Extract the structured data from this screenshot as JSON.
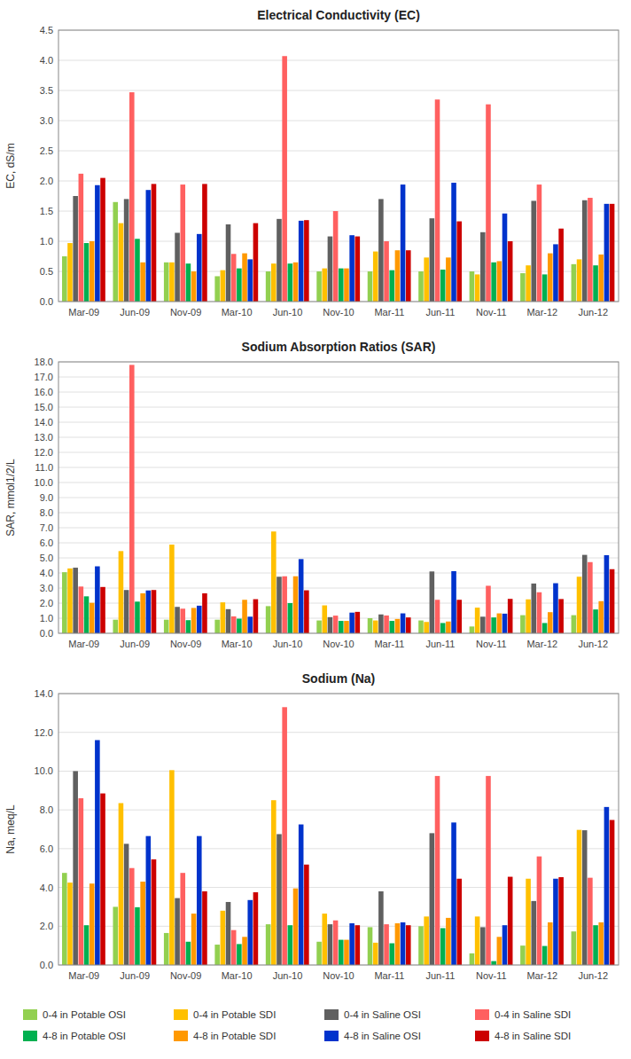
{
  "chart_data": [
    {
      "type": "bar",
      "title": "Electrical Conductivity (EC)",
      "y_label": "EC, dS/m",
      "categories": [
        "Mar-09",
        "Jun-09",
        "Nov-09",
        "Mar-10",
        "Jun-10",
        "Nov-10",
        "Mar-11",
        "Jun-11",
        "Nov-11",
        "Mar-12",
        "Jun-12"
      ],
      "series": [
        {
          "name": "0-4 in Potable OSI",
          "color": "#92D050",
          "values": [
            0.75,
            1.65,
            0.65,
            0.42,
            0.5,
            0.5,
            0.5,
            0.5,
            0.5,
            0.47,
            0.62
          ]
        },
        {
          "name": "0-4 in Potable SDI",
          "color": "#FFC000",
          "values": [
            0.97,
            1.3,
            0.65,
            0.52,
            0.63,
            0.55,
            0.83,
            0.73,
            0.45,
            0.6,
            0.7
          ]
        },
        {
          "name": "0-4 in Saline OSI",
          "color": "#606060",
          "values": [
            1.75,
            1.7,
            1.14,
            1.28,
            1.37,
            1.08,
            1.7,
            1.38,
            1.15,
            1.67,
            1.68
          ]
        },
        {
          "name": "0-4 in Saline SDI",
          "color": "#FF6060",
          "values": [
            2.12,
            3.47,
            1.94,
            0.79,
            4.07,
            1.5,
            1.0,
            3.35,
            3.27,
            1.94,
            1.72
          ]
        },
        {
          "name": "4-8 in Potable OSI",
          "color": "#00B050",
          "values": [
            0.97,
            1.04,
            0.63,
            0.55,
            0.63,
            0.55,
            0.52,
            0.53,
            0.65,
            0.45,
            0.6
          ]
        },
        {
          "name": "4-8 in Potable SDI",
          "color": "#FF9900",
          "values": [
            1.0,
            0.65,
            0.5,
            0.8,
            0.65,
            0.55,
            0.85,
            0.73,
            0.67,
            0.8,
            0.78
          ]
        },
        {
          "name": "4-8 in Saline OSI",
          "color": "#0033CC",
          "values": [
            1.93,
            1.85,
            1.12,
            0.7,
            1.34,
            1.1,
            1.94,
            1.97,
            1.46,
            0.95,
            1.62
          ]
        },
        {
          "name": "4-8 in Saline SDI",
          "color": "#CC0000",
          "values": [
            2.05,
            1.95,
            1.95,
            1.3,
            1.35,
            1.08,
            0.85,
            1.33,
            1.0,
            1.21,
            1.62
          ]
        }
      ],
      "ylim": [
        0,
        4.5
      ],
      "yticks": [
        {
          "value": 0,
          "label": "0.0"
        },
        0.5,
        {
          "value": 1,
          "label": "1.0"
        },
        1.5,
        {
          "value": 2,
          "label": "2.0"
        },
        2.5,
        {
          "value": 3,
          "label": "3.0"
        },
        3.5,
        {
          "value": 4,
          "label": "4.0"
        },
        4.5
      ],
      "grid": true
    },
    {
      "type": "bar",
      "title": "Sodium Absorption Ratios (SAR)",
      "y_label": "SAR, mmol1/2/L",
      "categories": [
        "Mar-09",
        "Jun-09",
        "Nov-09",
        "Mar-10",
        "Jun-10",
        "Nov-10",
        "Mar-11",
        "Jun-11",
        "Nov-11",
        "Mar-12",
        "Jun-12"
      ],
      "series": [
        {
          "name": "0-4 in Potable OSI",
          "color": "#92D050",
          "values": [
            4.05,
            0.9,
            0.9,
            0.9,
            1.8,
            0.85,
            1.0,
            0.85,
            0.45,
            1.2,
            1.2
          ]
        },
        {
          "name": "0-4 in Potable SDI",
          "color": "#FFC000",
          "values": [
            4.3,
            5.45,
            5.88,
            2.05,
            6.75,
            1.85,
            0.85,
            0.75,
            1.7,
            2.25,
            3.75
          ]
        },
        {
          "name": "0-4 in Saline OSI",
          "color": "#606060",
          "values": [
            4.35,
            2.87,
            1.75,
            1.6,
            3.75,
            1.07,
            1.25,
            4.1,
            1.1,
            3.3,
            5.2
          ]
        },
        {
          "name": "0-4 in Saline SDI",
          "color": "#FF6060",
          "values": [
            3.1,
            17.8,
            1.63,
            1.12,
            3.78,
            1.17,
            1.18,
            2.22,
            3.15,
            2.72,
            4.72
          ]
        },
        {
          "name": "4-8 in Potable OSI",
          "color": "#00B050",
          "values": [
            2.45,
            2.1,
            0.87,
            0.97,
            2.0,
            0.82,
            0.82,
            0.68,
            1.05,
            0.68,
            1.58
          ]
        },
        {
          "name": "4-8 in Potable SDI",
          "color": "#FF9900",
          "values": [
            2.02,
            2.65,
            1.68,
            2.22,
            3.78,
            0.82,
            0.95,
            0.78,
            1.32,
            1.4,
            2.13
          ]
        },
        {
          "name": "4-8 in Saline OSI",
          "color": "#0033CC",
          "values": [
            4.44,
            2.84,
            1.83,
            1.1,
            4.92,
            1.37,
            1.32,
            4.12,
            1.3,
            3.32,
            5.18
          ]
        },
        {
          "name": "4-8 in Saline SDI",
          "color": "#CC0000",
          "values": [
            3.07,
            2.87,
            2.65,
            2.26,
            2.85,
            1.42,
            1.05,
            2.22,
            2.28,
            2.27,
            4.25
          ]
        }
      ],
      "ylim": [
        0,
        18
      ],
      "yticks": [
        {
          "value": 0,
          "label": "0.0"
        },
        {
          "value": 1,
          "label": "1.0"
        },
        {
          "value": 2,
          "label": "2.0"
        },
        {
          "value": 3,
          "label": "3.0"
        },
        {
          "value": 4,
          "label": "4.0"
        },
        {
          "value": 5,
          "label": "5.0"
        },
        {
          "value": 6,
          "label": "6.0"
        },
        {
          "value": 7,
          "label": "7.0"
        },
        {
          "value": 8,
          "label": "8.0"
        },
        {
          "value": 9,
          "label": "9.0"
        },
        {
          "value": 10,
          "label": "10.0"
        },
        {
          "value": 11,
          "label": "11.0"
        },
        {
          "value": 12,
          "label": "12.0"
        },
        {
          "value": 13,
          "label": "13.0"
        },
        {
          "value": 14,
          "label": "14.0"
        },
        {
          "value": 15,
          "label": "15.0"
        },
        {
          "value": 16,
          "label": "16.0"
        },
        {
          "value": 17,
          "label": "17.0"
        },
        {
          "value": 18,
          "label": "18.0"
        }
      ],
      "grid": true
    },
    {
      "type": "bar",
      "title": "Sodium (Na)",
      "y_label": "Na, meq/L",
      "categories": [
        "Mar-09",
        "Jun-09",
        "Nov-09",
        "Mar-10",
        "Jun-10",
        "Nov-10",
        "Mar-11",
        "Jun-11",
        "Nov-11",
        "Mar-12",
        "Jun-12"
      ],
      "series": [
        {
          "name": "0-4 in Potable OSI",
          "color": "#92D050",
          "values": [
            4.75,
            3.0,
            1.65,
            1.05,
            2.1,
            1.2,
            1.95,
            2.0,
            0.6,
            1.0,
            1.73
          ]
        },
        {
          "name": "0-4 in Potable SDI",
          "color": "#FFC000",
          "values": [
            4.25,
            8.35,
            10.05,
            2.8,
            8.5,
            2.65,
            1.15,
            2.5,
            2.5,
            4.45,
            6.97
          ]
        },
        {
          "name": "0-4 in Saline OSI",
          "color": "#606060",
          "values": [
            10.0,
            6.25,
            3.45,
            3.25,
            6.75,
            2.1,
            3.8,
            6.8,
            1.95,
            3.3,
            6.95
          ]
        },
        {
          "name": "0-4 in Saline SDI",
          "color": "#FF6060",
          "values": [
            8.6,
            5.0,
            4.75,
            1.8,
            13.3,
            2.3,
            2.1,
            9.75,
            9.75,
            5.6,
            4.5
          ]
        },
        {
          "name": "4-8 in Potable OSI",
          "color": "#00B050",
          "values": [
            2.05,
            2.98,
            1.2,
            1.08,
            2.05,
            1.3,
            1.12,
            1.9,
            0.2,
            0.98,
            2.05
          ]
        },
        {
          "name": "4-8 in Potable SDI",
          "color": "#FF9900",
          "values": [
            4.2,
            4.3,
            2.65,
            1.45,
            3.95,
            1.3,
            2.15,
            2.43,
            1.45,
            2.2,
            2.2
          ]
        },
        {
          "name": "4-8 in Saline OSI",
          "color": "#0033CC",
          "values": [
            11.6,
            6.65,
            6.65,
            3.35,
            7.25,
            2.15,
            2.2,
            7.35,
            2.05,
            4.45,
            8.15
          ]
        },
        {
          "name": "4-8 in Saline SDI",
          "color": "#CC0000",
          "values": [
            8.85,
            5.45,
            3.8,
            3.75,
            5.18,
            2.05,
            2.05,
            4.45,
            4.55,
            4.53,
            7.48
          ]
        }
      ],
      "ylim": [
        0,
        14
      ],
      "yticks": [
        {
          "value": 0,
          "label": "0.0"
        },
        {
          "value": 2,
          "label": "2.0"
        },
        {
          "value": 4,
          "label": "4.0"
        },
        {
          "value": 6,
          "label": "6.0"
        },
        {
          "value": 8,
          "label": "8.0"
        },
        {
          "value": 10,
          "label": "10.0"
        },
        {
          "value": 12,
          "label": "12.0"
        },
        {
          "value": 14,
          "label": "14.0"
        }
      ],
      "grid": true,
      "legend": "bottom"
    }
  ]
}
